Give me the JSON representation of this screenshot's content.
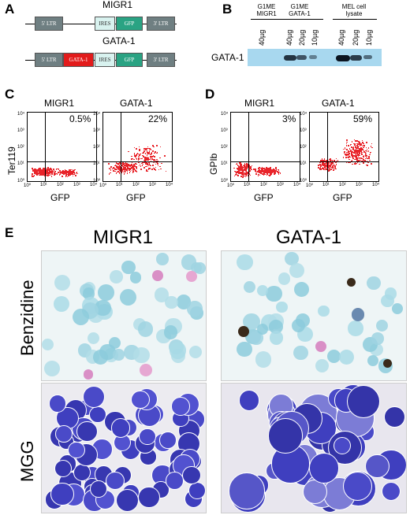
{
  "panels": {
    "a": "A",
    "b": "B",
    "c": "C",
    "d": "D",
    "e": "E"
  },
  "constructs": {
    "migr1_title": "MIGR1",
    "gata1_title": "GATA-1",
    "ltr5": "5' LTR",
    "ltr3": "3' LTR",
    "ires": "IRES",
    "gfp": "GFP",
    "gata_box": "GATA-1"
  },
  "blot": {
    "groups": [
      {
        "line1": "G1ME",
        "line2": "MIGR1"
      },
      {
        "line1": "G1ME",
        "line2": "GATA-1"
      },
      {
        "line1": "MEL cell",
        "line2": "lysate"
      }
    ],
    "lanes": [
      "40µg",
      "40µg",
      "20µg",
      "10µg",
      "40µg",
      "20µg",
      "10µg"
    ],
    "row_label": "GATA-1",
    "band_intensity": [
      0,
      0.75,
      0.5,
      0.15,
      1.0,
      0.7,
      0.3
    ],
    "colors": {
      "membrane": "#a8d8ef",
      "band": "#0b1420"
    }
  },
  "flow": {
    "c_ylabel": "Ter119",
    "d_ylabel": "GPIb",
    "xlabel": "GFP",
    "plots": [
      {
        "title": "MIGR1",
        "pct": "0.5%"
      },
      {
        "title": "GATA-1",
        "pct": "22%"
      },
      {
        "title": "MIGR1",
        "pct": "3%"
      },
      {
        "title": "GATA-1",
        "pct": "59%"
      }
    ],
    "ticks_y": [
      "10⁴",
      "10³",
      "10²",
      "10¹",
      "10⁰"
    ],
    "ticks_x": [
      "10⁰",
      "10¹",
      "10²",
      "10³",
      "10⁴"
    ],
    "dot_color": "#e8242a"
  },
  "micro": {
    "col1": "MIGR1",
    "col2": "GATA-1",
    "row1": "Benzidine",
    "row2": "MGG"
  }
}
